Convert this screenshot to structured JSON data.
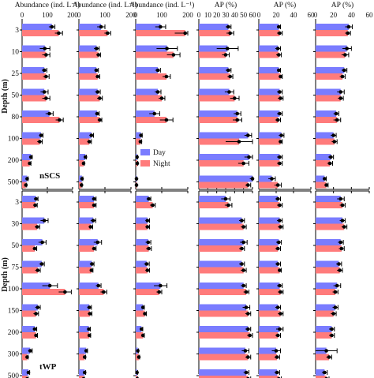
{
  "colors": {
    "day": "#7a7cff",
    "night": "#ff7b7b",
    "axis": "#000000",
    "dot": "#000000"
  },
  "chart_data": {
    "type": "bar",
    "orientation": "horizontal",
    "ylabel": "Depth (m)",
    "legend": {
      "entries": [
        "Day",
        "Night"
      ],
      "placement": "inside panel 3, lower region"
    },
    "columns": [
      {
        "header": "Abundance (ind. L⁻¹)",
        "ticks": [
          0,
          100,
          200
        ],
        "xlim": [
          0,
          200
        ]
      },
      {
        "header": "Abundance (ind. L⁻¹)",
        "ticks": [
          0,
          100,
          200
        ],
        "xlim": [
          0,
          200
        ]
      },
      {
        "header": "Abundance (ind. L⁻¹)",
        "ticks": [
          0,
          100,
          200
        ],
        "xlim": [
          0,
          200
        ]
      },
      {
        "header": "AP (%)",
        "ticks": [
          0,
          10,
          20,
          30,
          40,
          50,
          60
        ],
        "xlim": [
          0,
          60
        ]
      },
      {
        "header": "AP (%)",
        "ticks": [
          0,
          20,
          40,
          60
        ],
        "xlim": [
          0,
          60
        ]
      },
      {
        "header": "AP (%)",
        "ticks": [
          0,
          20,
          40,
          60
        ],
        "xlim": [
          0,
          60
        ]
      }
    ],
    "regions": [
      {
        "name": "nSCS",
        "depths": [
          "3",
          "10",
          "25",
          "50",
          "80",
          "100",
          "200",
          "500"
        ],
        "series": [
          {
            "name": "Day",
            "values": [
              [
                118,
                90,
                88,
                88,
                108,
                75,
                35,
                20
              ],
              [
                85,
                68,
                67,
                72,
                70,
                48,
                25,
                12
              ],
              [
                95,
                120,
                85,
                85,
                72,
                20,
                5,
                3
              ],
              [
                33,
                32,
                33,
                34,
                43,
                55,
                56,
                60
              ],
              [
                23,
                22,
                23,
                24,
                24,
                26,
                24,
                15
              ],
              [
                37,
                35,
                32,
                28,
                23,
                20,
                17,
                10
              ]
            ],
            "errors": [
              [
                12,
                20,
                10,
                15,
                15,
                8,
                5,
                4
              ],
              [
                15,
                10,
                8,
                10,
                8,
                8,
                4,
                3
              ],
              [
                20,
                40,
                10,
                12,
                20,
                5,
                2,
                1
              ],
              [
                3,
                12,
                3,
                5,
                4,
                4,
                5,
                3
              ],
              [
                2,
                3,
                2,
                3,
                3,
                3,
                3,
                4
              ],
              [
                4,
                5,
                3,
                4,
                3,
                3,
                3,
                2
              ]
            ]
          },
          {
            "name": "Night",
            "values": [
              [
                145,
                95,
                95,
                95,
                148,
                70,
                30,
                15
              ],
              [
                110,
                75,
                72,
                80,
                80,
                40,
                18,
                10
              ],
              [
                190,
                145,
                118,
                100,
                118,
                18,
                6,
                3
              ],
              [
                35,
                30,
                35,
                40,
                43,
                45,
                50,
                55
              ],
              [
                24,
                23,
                25,
                25,
                22,
                25,
                24,
                22
              ],
              [
                36,
                33,
                30,
                28,
                24,
                21,
                16,
                12
              ]
            ],
            "errors": [
              [
                15,
                15,
                12,
                15,
                15,
                10,
                5,
                3
              ],
              [
                12,
                8,
                8,
                10,
                8,
                8,
                3,
                2
              ],
              [
                40,
                25,
                15,
                12,
                25,
                5,
                2,
                1
              ],
              [
                4,
                4,
                3,
                5,
                5,
                15,
                6,
                3
              ],
              [
                3,
                3,
                2,
                3,
                3,
                2,
                3,
                4
              ],
              [
                3,
                4,
                3,
                3,
                4,
                3,
                3,
                2
              ]
            ]
          }
        ]
      },
      {
        "name": "tWP",
        "depths": [
          "3",
          "30",
          "50",
          "75",
          "100",
          "150",
          "200",
          "300",
          "500"
        ],
        "series": [
          {
            "name": "Day",
            "values": [
              [
                55,
                88,
                80,
                78,
                110,
                62,
                50,
                32,
                25
              ],
              [
                58,
                55,
                72,
                50,
                75,
                40,
                38,
                28,
                22
              ],
              [
                50,
                45,
                48,
                42,
                95,
                28,
                22,
                8,
                5
              ],
              [
                30,
                48,
                50,
                48,
                50,
                53,
                55,
                52,
                53
              ],
              [
                22,
                24,
                23,
                22,
                24,
                22,
                24,
                20,
                21
              ],
              [
                28,
                30,
                28,
                26,
                24,
                22,
                18,
                12,
                10
              ]
            ],
            "errors": [
              [
                8,
                15,
                15,
                10,
                30,
                10,
                8,
                8,
                5
              ],
              [
                8,
                10,
                15,
                8,
                10,
                8,
                6,
                5,
                4
              ],
              [
                8,
                8,
                10,
                10,
                25,
                5,
                5,
                3,
                2
              ],
              [
                5,
                3,
                4,
                3,
                3,
                4,
                3,
                4,
                3
              ],
              [
                3,
                3,
                3,
                3,
                3,
                3,
                4,
                5,
                3
              ],
              [
                4,
                3,
                3,
                3,
                4,
                3,
                3,
                12,
                3
              ]
            ]
          },
          {
            "name": "Night",
            "values": [
              [
                52,
                60,
                50,
                62,
                170,
                55,
                55,
                20,
                20
              ],
              [
                58,
                45,
                58,
                48,
                95,
                42,
                40,
                22,
                18
              ],
              [
                65,
                45,
                50,
                45,
                90,
                35,
                28,
                12,
                6
              ],
              [
                33,
                50,
                48,
                50,
                53,
                55,
                57,
                55,
                55
              ],
              [
                24,
                25,
                22,
                24,
                25,
                25,
                22,
                21,
                23
              ],
              [
                30,
                32,
                29,
                27,
                22,
                20,
                18,
                15,
                12
              ]
            ],
            "errors": [
              [
                8,
                10,
                8,
                10,
                25,
                10,
                6,
                4,
                4
              ],
              [
                8,
                8,
                8,
                6,
                12,
                8,
                5,
                4,
                3
              ],
              [
                10,
                8,
                10,
                8,
                10,
                6,
                5,
                3,
                2
              ],
              [
                4,
                3,
                3,
                3,
                3,
                3,
                3,
                3,
                3
              ],
              [
                3,
                3,
                3,
                2,
                3,
                3,
                3,
                3,
                3
              ],
              [
                3,
                3,
                3,
                3,
                3,
                3,
                3,
                3,
                3
              ]
            ]
          }
        ]
      }
    ]
  }
}
